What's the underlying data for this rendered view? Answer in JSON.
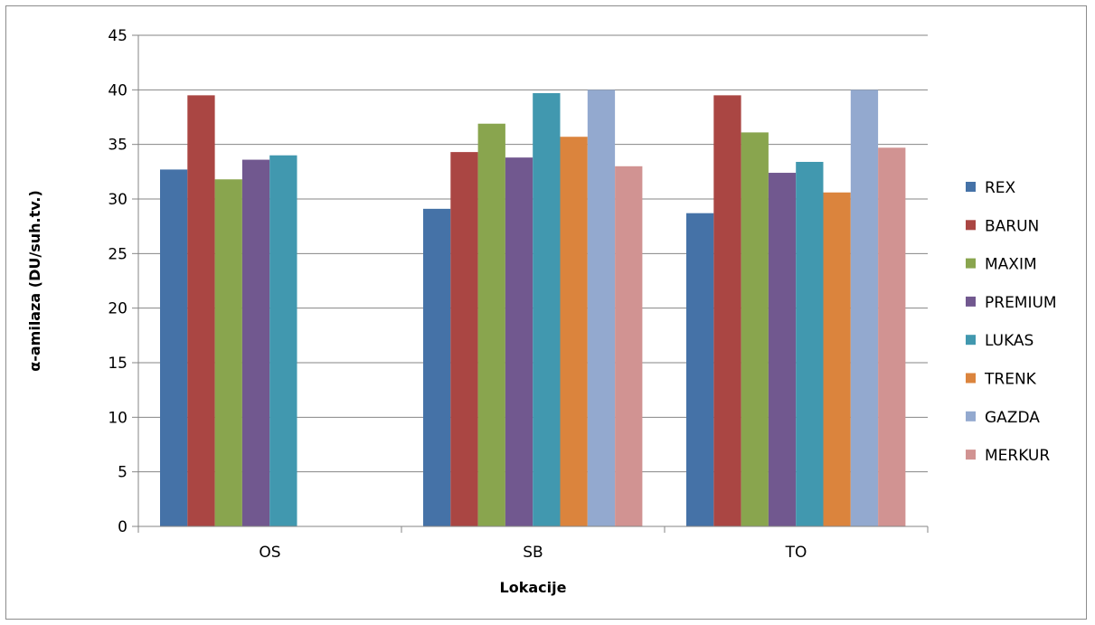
{
  "chart_data": {
    "type": "bar",
    "title": "",
    "xlabel": "Lokacije",
    "ylabel": "α-amilaza (DU/suh.tv.)",
    "categories": [
      "OS",
      "SB",
      "TO"
    ],
    "ylim": [
      0,
      45
    ],
    "yticks": [
      0,
      5,
      10,
      15,
      20,
      25,
      30,
      35,
      40,
      45
    ],
    "grid": true,
    "legend_position": "right",
    "series": [
      {
        "name": "REX",
        "color": "#4572A7",
        "values": [
          32.7,
          29.1,
          28.7
        ]
      },
      {
        "name": "BARUN",
        "color": "#AA4643",
        "values": [
          39.5,
          34.3,
          39.5
        ]
      },
      {
        "name": "MAXIM",
        "color": "#89A54E",
        "values": [
          31.8,
          36.9,
          36.1
        ]
      },
      {
        "name": "PREMIUM",
        "color": "#71588F",
        "values": [
          33.6,
          33.8,
          32.4
        ]
      },
      {
        "name": "LUKAS",
        "color": "#4198AF",
        "values": [
          34.0,
          39.7,
          33.4
        ]
      },
      {
        "name": "TRENK",
        "color": "#DB843D",
        "values": [
          null,
          35.7,
          30.6
        ]
      },
      {
        "name": "GAZDA",
        "color": "#93A9CF",
        "values": [
          null,
          40.0,
          40.0
        ]
      },
      {
        "name": "MERKUR",
        "color": "#D19392",
        "values": [
          null,
          33.0,
          34.7
        ]
      }
    ]
  }
}
